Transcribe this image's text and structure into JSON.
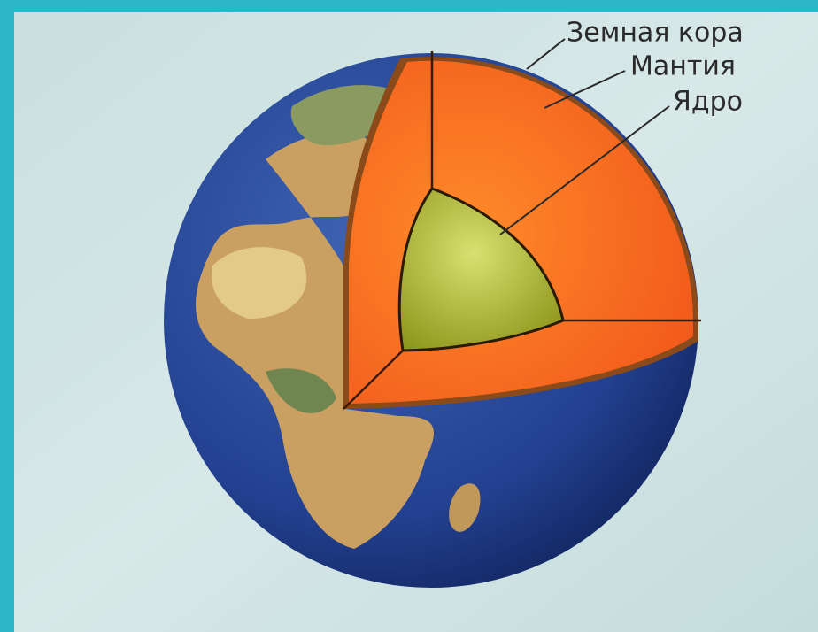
{
  "labels": [
    "Земная кора",
    "Мантия",
    "Ядро"
  ]
}
